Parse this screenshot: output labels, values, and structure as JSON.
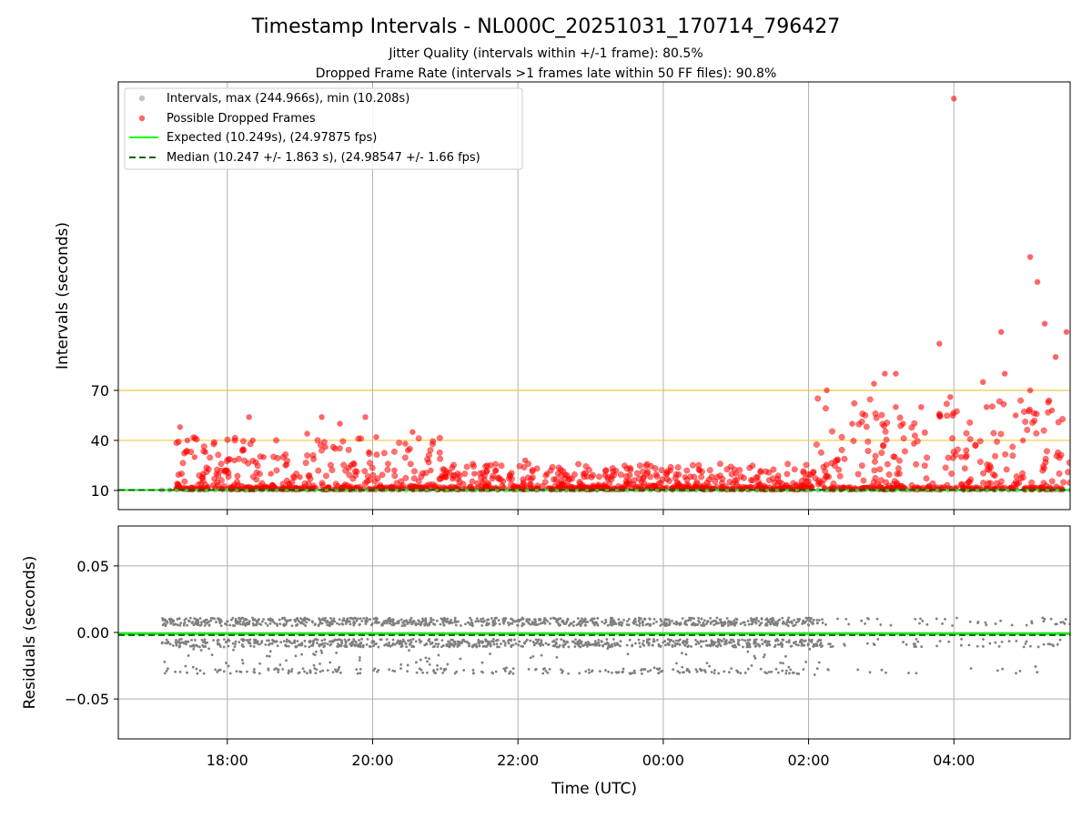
{
  "figure": {
    "title": "Timestamp Intervals - NL000C_20251031_170714_796427",
    "subtitle1": "Jitter Quality (intervals within +/-1 frame): 80.5%",
    "subtitle2": "Dropped Frame Rate (intervals >1 frames late within 50 FF files): 90.8%",
    "xlabel": "Time (UTC)"
  },
  "colors": {
    "intervals": "#999999",
    "dropped": "#ff0000",
    "expected": "#00ff00",
    "median": "#006400",
    "threshold": "#f5c842",
    "grid": "#b0b0b0",
    "residuals": "#808080"
  },
  "chart_data": [
    {
      "type": "scatter",
      "ylabel": "Intervals (seconds)",
      "y_ticks": [
        10,
        40,
        70
      ],
      "ylim": [
        -1.5,
        255
      ],
      "xlim": [
        16.5,
        29.6
      ],
      "x_ticks": [
        18,
        20,
        22,
        24,
        26,
        28
      ],
      "x_tick_labels": [
        "18:00",
        "20:00",
        "22:00",
        "00:00",
        "02:00",
        "04:00"
      ],
      "grid": true,
      "legend_position": "top-left",
      "legend": [
        "Intervals, max (244.966s), min (10.208s)",
        "Possible Dropped Frames",
        "Expected (10.249s), (24.97875 fps)",
        "Median (10.247 +/- 1.863 s), (24.98547 +/- 1.66 fps)"
      ],
      "series": [
        {
          "name": "Intervals, max (244.966s), min (10.208s)",
          "x_range": [
            17.1,
            29.6
          ],
          "value": 10.25
        },
        {
          "name": "Possible Dropped Frames",
          "x": [
            17.35,
            17.45,
            17.55,
            17.7,
            17.85,
            18.0,
            18.1,
            18.3,
            18.35,
            18.5,
            18.6,
            18.8,
            19.0,
            19.1,
            19.3,
            19.35,
            19.55,
            19.7,
            19.9,
            19.95,
            20.05,
            20.3,
            20.45,
            20.55,
            20.8,
            21.1,
            21.4,
            21.7,
            22.1,
            22.4,
            22.6,
            22.9,
            23.2,
            23.7,
            24.1,
            24.3,
            24.5,
            25.0,
            25.3,
            25.6,
            26.25,
            26.4,
            26.6,
            26.9,
            27.05,
            27.2,
            27.3,
            27.45,
            27.55,
            27.8,
            27.95,
            28.1,
            28.4,
            28.45,
            28.7,
            28.85,
            28.95,
            29.05,
            29.25,
            29.35,
            29.55
          ],
          "y": [
            48,
            40,
            30,
            33,
            20,
            22,
            28,
            54,
            40,
            30,
            20,
            25,
            18,
            44,
            54,
            36,
            50,
            25,
            54,
            33,
            42,
            22,
            38,
            45,
            22,
            17,
            20,
            22,
            28,
            20,
            14,
            20,
            19,
            15,
            22,
            18,
            22,
            20,
            18,
            15,
            70,
            28,
            50,
            74,
            80,
            60,
            50,
            38,
            60,
            55,
            66,
            30,
            75,
            60,
            80,
            55,
            40,
            70,
            110,
            58,
            105
          ]
        },
        {
          "name": "Expected (10.249s), (24.97875 fps)",
          "value": 10.249
        },
        {
          "name": "Median (10.247 +/- 1.863 s), (24.98547 +/- 1.66 fps)",
          "value": 10.247
        }
      ],
      "outliers_y": [
        244.966,
        150,
        135,
        105,
        98,
        90,
        80
      ]
    },
    {
      "type": "scatter",
      "ylabel": "Residuals (seconds)",
      "y_ticks": [
        0.05,
        0.0,
        -0.05
      ],
      "y_tick_labels": [
        "0.05",
        "0.00",
        "−0.05"
      ],
      "ylim": [
        -0.08,
        0.08
      ],
      "xlim": [
        16.5,
        29.6
      ],
      "grid": true,
      "series": [
        {
          "name": "Residuals",
          "band_upper": 0.008,
          "band_lower": -0.008,
          "low_cluster": -0.029,
          "x_range": [
            17.1,
            29.6
          ]
        },
        {
          "name": "Expected",
          "value": -0.001
        },
        {
          "name": "Median",
          "value": -0.002
        }
      ]
    }
  ]
}
